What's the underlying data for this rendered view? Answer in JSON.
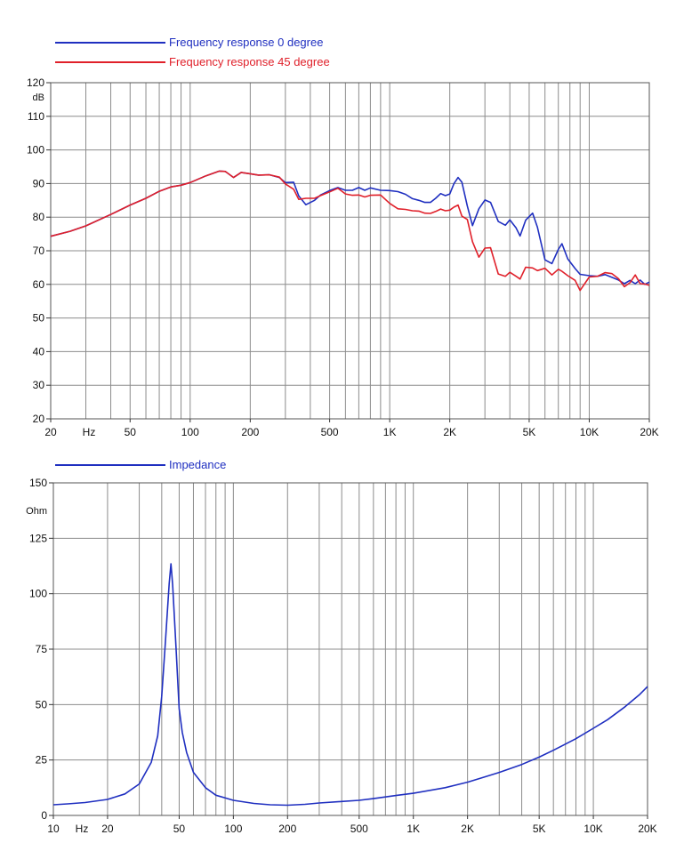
{
  "chart_data": [
    {
      "type": "line",
      "title": "",
      "xlabel": "",
      "ylabel": "",
      "x_scale": "log",
      "xlim": [
        20,
        20000
      ],
      "ylim": [
        20,
        120
      ],
      "y_unit": "dB",
      "x_unit": "Hz",
      "grid": true,
      "legend_position": "top-left",
      "y_ticks": [
        20,
        30,
        40,
        50,
        60,
        70,
        80,
        90,
        100,
        110,
        120
      ],
      "x_tick_labels": [
        {
          "x": 20,
          "label": "20"
        },
        {
          "x": 50,
          "label": "50"
        },
        {
          "x": 100,
          "label": "100"
        },
        {
          "x": 200,
          "label": "200"
        },
        {
          "x": 500,
          "label": "500"
        },
        {
          "x": 1000,
          "label": "1K"
        },
        {
          "x": 2000,
          "label": "2K"
        },
        {
          "x": 5000,
          "label": "5K"
        },
        {
          "x": 10000,
          "label": "10K"
        },
        {
          "x": 20000,
          "label": "20K"
        }
      ],
      "series": [
        {
          "name": "Frequency response 0 degree",
          "color": "#1f2fc0",
          "points": [
            [
              20,
              74.3
            ],
            [
              25,
              75.8
            ],
            [
              30,
              77.4
            ],
            [
              40,
              80.8
            ],
            [
              50,
              83.6
            ],
            [
              60,
              85.6
            ],
            [
              70,
              87.7
            ],
            [
              80,
              89.0
            ],
            [
              90,
              89.5
            ],
            [
              100,
              90.3
            ],
            [
              120,
              92.3
            ],
            [
              140,
              93.7
            ],
            [
              150,
              93.6
            ],
            [
              165,
              91.8
            ],
            [
              180,
              93.3
            ],
            [
              200,
              92.9
            ],
            [
              220,
              92.5
            ],
            [
              250,
              92.6
            ],
            [
              280,
              91.8
            ],
            [
              300,
              90.3
            ],
            [
              330,
              90.4
            ],
            [
              350,
              86.3
            ],
            [
              380,
              83.7
            ],
            [
              420,
              85.0
            ],
            [
              450,
              86.6
            ],
            [
              500,
              87.9
            ],
            [
              550,
              88.8
            ],
            [
              600,
              88.0
            ],
            [
              650,
              88.0
            ],
            [
              700,
              88.8
            ],
            [
              750,
              88.0
            ],
            [
              800,
              88.7
            ],
            [
              900,
              88.0
            ],
            [
              1000,
              87.9
            ],
            [
              1100,
              87.6
            ],
            [
              1200,
              86.8
            ],
            [
              1300,
              85.5
            ],
            [
              1400,
              85.0
            ],
            [
              1500,
              84.4
            ],
            [
              1600,
              84.4
            ],
            [
              1700,
              85.6
            ],
            [
              1800,
              87.0
            ],
            [
              1900,
              86.4
            ],
            [
              2000,
              86.9
            ],
            [
              2100,
              90.0
            ],
            [
              2200,
              91.8
            ],
            [
              2300,
              90.4
            ],
            [
              2450,
              83.3
            ],
            [
              2600,
              77.5
            ],
            [
              2800,
              82.5
            ],
            [
              3000,
              85.1
            ],
            [
              3200,
              84.4
            ],
            [
              3500,
              78.7
            ],
            [
              3800,
              77.6
            ],
            [
              4000,
              79.2
            ],
            [
              4300,
              76.8
            ],
            [
              4500,
              74.4
            ],
            [
              4800,
              79.1
            ],
            [
              5200,
              81.2
            ],
            [
              5500,
              77.0
            ],
            [
              6000,
              67.3
            ],
            [
              6500,
              66.2
            ],
            [
              7000,
              70.4
            ],
            [
              7300,
              72.1
            ],
            [
              7800,
              67.6
            ],
            [
              8500,
              64.7
            ],
            [
              9000,
              63.0
            ],
            [
              10000,
              62.6
            ],
            [
              11000,
              62.4
            ],
            [
              12000,
              62.9
            ],
            [
              13000,
              62.1
            ],
            [
              14000,
              61.3
            ],
            [
              15000,
              60.2
            ],
            [
              16000,
              61.2
            ],
            [
              17000,
              60.2
            ],
            [
              18000,
              61.3
            ],
            [
              19000,
              60.0
            ],
            [
              20000,
              60.7
            ]
          ]
        },
        {
          "name": "Frequency response 45 degree",
          "color": "#e0202a",
          "points": [
            [
              20,
              74.3
            ],
            [
              25,
              75.8
            ],
            [
              30,
              77.4
            ],
            [
              40,
              80.8
            ],
            [
              50,
              83.6
            ],
            [
              60,
              85.6
            ],
            [
              70,
              87.7
            ],
            [
              80,
              89.0
            ],
            [
              90,
              89.5
            ],
            [
              100,
              90.3
            ],
            [
              120,
              92.3
            ],
            [
              140,
              93.7
            ],
            [
              150,
              93.6
            ],
            [
              165,
              91.8
            ],
            [
              180,
              93.3
            ],
            [
              200,
              92.9
            ],
            [
              220,
              92.5
            ],
            [
              250,
              92.6
            ],
            [
              280,
              91.9
            ],
            [
              300,
              89.9
            ],
            [
              330,
              88.3
            ],
            [
              350,
              85.3
            ],
            [
              380,
              85.6
            ],
            [
              420,
              85.6
            ],
            [
              450,
              86.4
            ],
            [
              500,
              87.5
            ],
            [
              550,
              88.6
            ],
            [
              600,
              86.9
            ],
            [
              650,
              86.5
            ],
            [
              700,
              86.6
            ],
            [
              750,
              86.0
            ],
            [
              800,
              86.5
            ],
            [
              900,
              86.6
            ],
            [
              1000,
              84.1
            ],
            [
              1100,
              82.5
            ],
            [
              1200,
              82.3
            ],
            [
              1300,
              81.9
            ],
            [
              1400,
              81.8
            ],
            [
              1500,
              81.2
            ],
            [
              1600,
              81.1
            ],
            [
              1700,
              81.7
            ],
            [
              1800,
              82.4
            ],
            [
              1900,
              81.9
            ],
            [
              2000,
              82.1
            ],
            [
              2100,
              83.0
            ],
            [
              2200,
              83.6
            ],
            [
              2300,
              80.3
            ],
            [
              2450,
              79.3
            ],
            [
              2600,
              72.7
            ],
            [
              2800,
              68.1
            ],
            [
              3000,
              70.8
            ],
            [
              3200,
              70.9
            ],
            [
              3500,
              63.1
            ],
            [
              3800,
              62.4
            ],
            [
              4000,
              63.6
            ],
            [
              4300,
              62.4
            ],
            [
              4500,
              61.6
            ],
            [
              4800,
              65.1
            ],
            [
              5200,
              64.9
            ],
            [
              5500,
              64.1
            ],
            [
              6000,
              64.8
            ],
            [
              6500,
              62.8
            ],
            [
              7000,
              64.5
            ],
            [
              7300,
              63.9
            ],
            [
              7800,
              62.6
            ],
            [
              8500,
              61.2
            ],
            [
              9000,
              58.2
            ],
            [
              10000,
              62.2
            ],
            [
              11000,
              62.4
            ],
            [
              12000,
              63.5
            ],
            [
              13000,
              63.2
            ],
            [
              14000,
              61.7
            ],
            [
              15000,
              59.3
            ],
            [
              16000,
              60.5
            ],
            [
              17000,
              62.8
            ],
            [
              18000,
              60.2
            ],
            [
              19000,
              60.1
            ],
            [
              20000,
              59.7
            ]
          ]
        }
      ]
    },
    {
      "type": "line",
      "title": "",
      "xlabel": "",
      "ylabel": "",
      "x_scale": "log",
      "xlim": [
        10,
        20000
      ],
      "ylim": [
        0,
        150
      ],
      "y_unit": "Ohm",
      "x_unit": "Hz",
      "grid": true,
      "legend_position": "top-left",
      "y_ticks": [
        0,
        25,
        50,
        75,
        100,
        125,
        150
      ],
      "x_tick_labels": [
        {
          "x": 10,
          "label": "10"
        },
        {
          "x": 20,
          "label": "20"
        },
        {
          "x": 50,
          "label": "50"
        },
        {
          "x": 100,
          "label": "100"
        },
        {
          "x": 200,
          "label": "200"
        },
        {
          "x": 500,
          "label": "500"
        },
        {
          "x": 1000,
          "label": "1K"
        },
        {
          "x": 2000,
          "label": "2K"
        },
        {
          "x": 5000,
          "label": "5K"
        },
        {
          "x": 10000,
          "label": "10K"
        },
        {
          "x": 20000,
          "label": "20K"
        }
      ],
      "series": [
        {
          "name": "Impedance",
          "color": "#1f2fc0",
          "points": [
            [
              10,
              4.8
            ],
            [
              12,
              5.2
            ],
            [
              15,
              5.8
            ],
            [
              20,
              7.2
            ],
            [
              25,
              9.7
            ],
            [
              30,
              14.2
            ],
            [
              35,
              24.0
            ],
            [
              38,
              35.9
            ],
            [
              40,
              53.7
            ],
            [
              42,
              79.1
            ],
            [
              44,
              104.5
            ],
            [
              45,
              113.5
            ],
            [
              46,
              104.0
            ],
            [
              48,
              75.7
            ],
            [
              50,
              48.3
            ],
            [
              52,
              37.5
            ],
            [
              55,
              28.4
            ],
            [
              60,
              19.4
            ],
            [
              70,
              12.5
            ],
            [
              80,
              9.1
            ],
            [
              100,
              6.8
            ],
            [
              130,
              5.4
            ],
            [
              160,
              4.8
            ],
            [
              200,
              4.6
            ],
            [
              250,
              5.0
            ],
            [
              300,
              5.6
            ],
            [
              400,
              6.3
            ],
            [
              500,
              6.8
            ],
            [
              600,
              7.6
            ],
            [
              800,
              9.0
            ],
            [
              1000,
              10.0
            ],
            [
              1500,
              12.5
            ],
            [
              2000,
              15.0
            ],
            [
              2500,
              17.4
            ],
            [
              3000,
              19.4
            ],
            [
              4000,
              23.0
            ],
            [
              5000,
              26.3
            ],
            [
              6000,
              29.4
            ],
            [
              8000,
              34.6
            ],
            [
              10000,
              39.3
            ],
            [
              12000,
              43.2
            ],
            [
              15000,
              49.0
            ],
            [
              18000,
              54.4
            ],
            [
              20000,
              58.1
            ]
          ]
        }
      ]
    }
  ]
}
